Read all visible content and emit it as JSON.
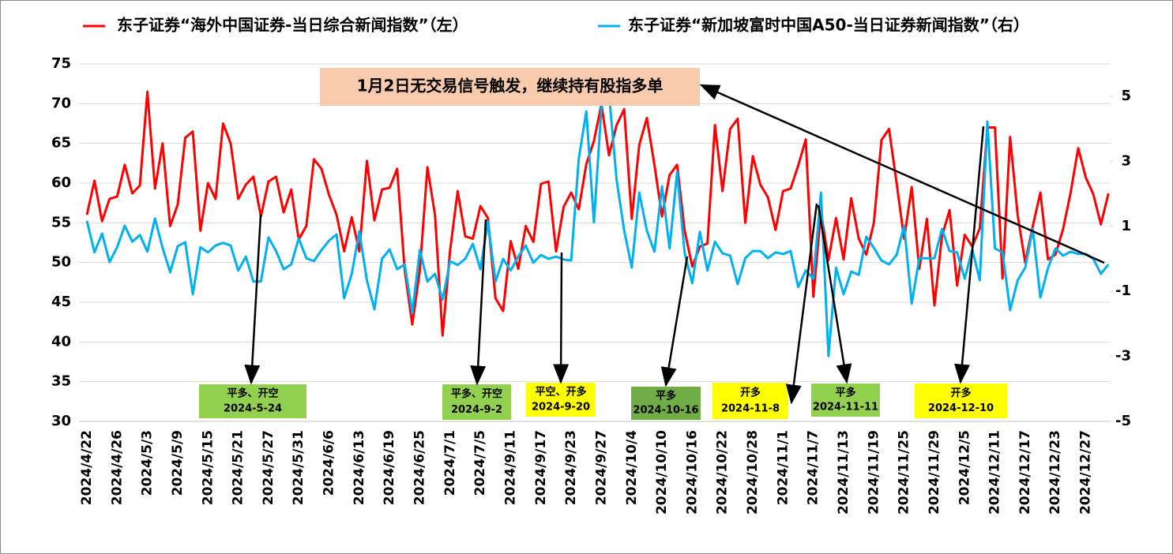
{
  "chart_data": {
    "type": "line",
    "categories": [
      "2024/4/22",
      null,
      null,
      null,
      "2024/4/26",
      null,
      null,
      null,
      "2024/5/3",
      null,
      null,
      null,
      "2024/5/9",
      null,
      null,
      null,
      "2024/5/15",
      null,
      null,
      null,
      "2024/5/21",
      null,
      null,
      null,
      "2024/5/27",
      null,
      null,
      null,
      "2024/5/31",
      null,
      null,
      null,
      "2024/6/6",
      null,
      null,
      null,
      "2024/6/13",
      null,
      null,
      null,
      "2024/6/19",
      null,
      null,
      null,
      "2024/6/25",
      null,
      null,
      null,
      "2024/7/1",
      null,
      null,
      null,
      "2024/7/5",
      null,
      null,
      null,
      "2024/9/11",
      null,
      null,
      null,
      "2024/9/17",
      null,
      null,
      null,
      "2024/9/23",
      null,
      null,
      null,
      "2024/9/27",
      null,
      null,
      null,
      "2024/10/4",
      null,
      null,
      null,
      "2024/10/10",
      null,
      null,
      null,
      "2024/10/16",
      null,
      null,
      null,
      "2024/10/22",
      null,
      null,
      null,
      "2024/10/28",
      null,
      null,
      null,
      "2024/11/1",
      null,
      null,
      null,
      "2024/11/7",
      null,
      null,
      null,
      "2024/11/13",
      null,
      null,
      null,
      "2024/11/19",
      null,
      null,
      null,
      "2024/11/25",
      null,
      null,
      null,
      "2024/11/29",
      null,
      null,
      null,
      "2024/12/5",
      null,
      null,
      null,
      "2024/12/11",
      null,
      null,
      null,
      "2024/12/17",
      null,
      null,
      null,
      "2024/12/23",
      null,
      null,
      null,
      "2024/12/27",
      null,
      null,
      null
    ],
    "series": [
      {
        "name": "东子证券“海外中国证券-当日综合新闻指数”（左）",
        "color": "#ff0000",
        "axis": "y",
        "values": [
          56,
          60.3,
          55.2,
          58,
          58.3,
          62.3,
          58.7,
          59.7,
          71.5,
          59.3,
          65,
          54.6,
          57.3,
          65.7,
          66.5,
          54,
          60,
          58,
          67.5,
          65,
          58,
          59.8,
          60.8,
          55.8,
          60.2,
          60.8,
          56.3,
          59.2,
          52.9,
          54.6,
          63,
          61.8,
          58.5,
          56,
          51.4,
          55.7,
          51.4,
          62.8,
          55.3,
          59.2,
          59.4,
          61.8,
          49,
          42.2,
          49,
          62,
          56,
          40.8,
          51.5,
          59,
          53.3,
          53,
          57.1,
          55.6,
          45.5,
          43.9,
          52.7,
          49.2,
          54.6,
          52.6,
          59.9,
          60.2,
          51.4,
          57,
          58.8,
          56.7,
          62.4,
          65.3,
          69.9,
          63.5,
          67.3,
          69.3,
          55.5,
          64.8,
          68.2,
          62.3,
          55.8,
          61,
          62.3,
          54,
          49.5,
          52,
          52.4,
          67.3,
          59,
          66.8,
          68.1,
          55,
          63.4,
          59.8,
          58.2,
          54.1,
          59,
          59.3,
          62.2,
          65.5,
          45.7,
          56.4,
          50.3,
          55.6,
          50.4,
          58.1,
          53,
          51,
          55,
          65.4,
          66.8,
          60,
          53,
          59.5,
          49.2,
          55.5,
          44.6,
          53.3,
          56.6,
          47.1,
          53.5,
          52,
          54.3,
          67,
          67,
          48,
          65.8,
          56,
          50,
          54.6,
          58.8,
          50.4,
          51,
          54.2,
          58.8,
          64.4,
          60.7,
          58.6,
          54.8,
          58.7
        ]
      },
      {
        "name": "东子证券“新加坡富时中国A50-当日证券新闻指数”（右）",
        "color": "#00b0f0",
        "axis": "y2",
        "values": [
          1.17,
          0.2,
          0.78,
          -0.1,
          0.36,
          1.02,
          0.53,
          0.73,
          0.22,
          1.24,
          0.34,
          -0.41,
          0.39,
          0.51,
          -1.09,
          0.36,
          0.2,
          0.41,
          0.49,
          0.41,
          -0.36,
          0.07,
          -0.7,
          -0.7,
          0.66,
          0.24,
          -0.32,
          -0.17,
          0.63,
          0.02,
          -0.07,
          0.27,
          0.56,
          0.75,
          -1.21,
          -0.46,
          0.85,
          -0.66,
          -1.55,
          0,
          0.29,
          -0.32,
          -0.17,
          -1.67,
          0.27,
          -0.7,
          -0.46,
          -1.26,
          -0.07,
          -0.19,
          0,
          0.46,
          -0.32,
          1.14,
          -0.7,
          0,
          -0.36,
          0.07,
          0.41,
          -0.12,
          0.12,
          0,
          0.07,
          -0.02,
          -0.05,
          3.08,
          4.54,
          1.12,
          4.66,
          5.1,
          2.43,
          0.87,
          -0.27,
          2.04,
          0.87,
          0.22,
          2.23,
          0.32,
          2.67,
          0.17,
          -0.75,
          0.83,
          -0.36,
          0.53,
          0.17,
          0.1,
          -0.78,
          0.02,
          0.24,
          0.24,
          0.02,
          0.2,
          0.15,
          0.24,
          -0.87,
          -0.36,
          -0.61,
          2.04,
          -2.99,
          -0.27,
          -1.09,
          -0.39,
          -0.49,
          0.68,
          0.34,
          -0.05,
          -0.17,
          0.12,
          1.02,
          -1.38,
          0.02,
          0.02,
          0.02,
          0.92,
          0.24,
          0.2,
          -0.61,
          0.29,
          -0.66,
          4.22,
          0.32,
          0.2,
          -1.58,
          -0.66,
          -0.27,
          0.92,
          -1.19,
          -0.29,
          0.32,
          0.1,
          0.22,
          0.15,
          0.15,
          0,
          -0.46,
          -0.17
        ]
      }
    ],
    "ylim": [
      30,
      75
    ],
    "yticks": [
      30,
      35,
      40,
      45,
      50,
      55,
      60,
      65,
      70,
      75
    ],
    "y2lim": [
      -5,
      5.5
    ],
    "y2ticks": [
      -5,
      -3,
      -1,
      1,
      3,
      5
    ],
    "grid": true,
    "annotations": [
      {
        "text": "1月2日无交易信号触发，继续持有股指多单",
        "color": "#f8cbad"
      },
      {
        "lines": [
          "平多、开空",
          "2024-5-24"
        ],
        "color": "#92d050"
      },
      {
        "lines": [
          "平多、开空",
          "2024-9-2"
        ],
        "color": "#92d050"
      },
      {
        "lines": [
          "平空、开多",
          "2024-9-20"
        ],
        "color": "#ffff00"
      },
      {
        "lines": [
          "平多",
          "2024-10-16"
        ],
        "color": "#70ad47"
      },
      {
        "lines": [
          "开多",
          "2024-11-8"
        ],
        "color": "#ffff00"
      },
      {
        "lines": [
          "平多",
          "2024-11-11"
        ],
        "color": "#92d050"
      },
      {
        "lines": [
          "开多",
          "2024-12-10"
        ],
        "color": "#ffff00"
      }
    ]
  }
}
